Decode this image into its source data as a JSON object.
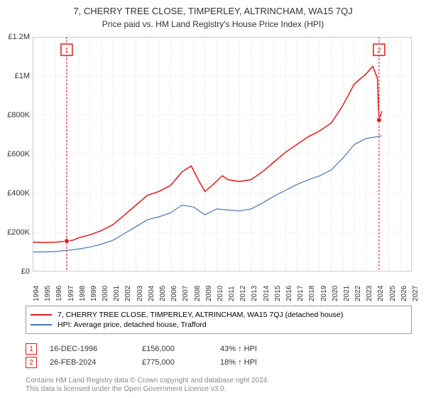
{
  "title": "7, CHERRY TREE CLOSE, TIMPERLEY, ALTRINCHAM, WA15 7QJ",
  "subtitle": "Price paid vs. HM Land Registry's House Price Index (HPI)",
  "chart": {
    "type": "line",
    "background_color": "#ffffff",
    "grid_color": "#cccccc",
    "border_color": "#999999",
    "xlim": [
      1994,
      2027
    ],
    "ylim": [
      0,
      1200000
    ],
    "y_ticks": [
      {
        "v": 0,
        "label": "£0"
      },
      {
        "v": 200000,
        "label": "£200K"
      },
      {
        "v": 400000,
        "label": "£400K"
      },
      {
        "v": 600000,
        "label": "£600K"
      },
      {
        "v": 800000,
        "label": "£800K"
      },
      {
        "v": 1000000,
        "label": "£1M"
      },
      {
        "v": 1200000,
        "label": "£1.2M"
      }
    ],
    "x_ticks": [
      1994,
      1995,
      1996,
      1997,
      1998,
      1999,
      2000,
      2001,
      2002,
      2003,
      2004,
      2005,
      2006,
      2007,
      2008,
      2009,
      2010,
      2011,
      2012,
      2013,
      2014,
      2015,
      2016,
      2017,
      2018,
      2019,
      2020,
      2021,
      2022,
      2023,
      2024,
      2025,
      2026,
      2027
    ],
    "series": [
      {
        "name": "property",
        "label": "7, CHERRY TREE CLOSE, TIMPERLEY, ALTRINCHAM, WA15 7QJ (detached house)",
        "color": "#e41a1c",
        "line_width": 1.5,
        "data": [
          [
            1994.0,
            150000
          ],
          [
            1995.0,
            148000
          ],
          [
            1996.0,
            150000
          ],
          [
            1996.96,
            156000
          ],
          [
            1997.5,
            160000
          ],
          [
            1998.0,
            172000
          ],
          [
            1999.0,
            188000
          ],
          [
            2000.0,
            210000
          ],
          [
            2001.0,
            240000
          ],
          [
            2002.0,
            290000
          ],
          [
            2003.0,
            340000
          ],
          [
            2004.0,
            390000
          ],
          [
            2005.0,
            410000
          ],
          [
            2006.0,
            440000
          ],
          [
            2007.0,
            510000
          ],
          [
            2007.8,
            540000
          ],
          [
            2008.5,
            460000
          ],
          [
            2009.0,
            410000
          ],
          [
            2009.8,
            450000
          ],
          [
            2010.5,
            490000
          ],
          [
            2011.0,
            470000
          ],
          [
            2012.0,
            460000
          ],
          [
            2013.0,
            470000
          ],
          [
            2014.0,
            510000
          ],
          [
            2015.0,
            560000
          ],
          [
            2016.0,
            610000
          ],
          [
            2017.0,
            650000
          ],
          [
            2018.0,
            690000
          ],
          [
            2019.0,
            720000
          ],
          [
            2020.0,
            760000
          ],
          [
            2021.0,
            850000
          ],
          [
            2022.0,
            960000
          ],
          [
            2023.0,
            1010000
          ],
          [
            2023.6,
            1050000
          ],
          [
            2024.0,
            990000
          ],
          [
            2024.15,
            775000
          ],
          [
            2024.4,
            820000
          ]
        ]
      },
      {
        "name": "hpi",
        "label": "HPI: Average price, detached house, Trafford",
        "color": "#4a74b8",
        "line_width": 1.2,
        "data": [
          [
            1994.0,
            100000
          ],
          [
            1995.0,
            100000
          ],
          [
            1996.0,
            102000
          ],
          [
            1997.0,
            108000
          ],
          [
            1998.0,
            115000
          ],
          [
            1999.0,
            125000
          ],
          [
            2000.0,
            140000
          ],
          [
            2001.0,
            160000
          ],
          [
            2002.0,
            195000
          ],
          [
            2003.0,
            230000
          ],
          [
            2004.0,
            265000
          ],
          [
            2005.0,
            280000
          ],
          [
            2006.0,
            300000
          ],
          [
            2007.0,
            340000
          ],
          [
            2008.0,
            330000
          ],
          [
            2009.0,
            290000
          ],
          [
            2010.0,
            320000
          ],
          [
            2011.0,
            315000
          ],
          [
            2012.0,
            310000
          ],
          [
            2013.0,
            320000
          ],
          [
            2014.0,
            350000
          ],
          [
            2015.0,
            385000
          ],
          [
            2016.0,
            415000
          ],
          [
            2017.0,
            445000
          ],
          [
            2018.0,
            470000
          ],
          [
            2019.0,
            490000
          ],
          [
            2020.0,
            520000
          ],
          [
            2021.0,
            580000
          ],
          [
            2022.0,
            650000
          ],
          [
            2023.0,
            680000
          ],
          [
            2024.0,
            690000
          ],
          [
            2024.4,
            695000
          ]
        ]
      }
    ],
    "sale_markers": [
      {
        "n": "1",
        "year": 1996.96,
        "value": 156000
      },
      {
        "n": "2",
        "year": 2024.15,
        "value": 775000
      }
    ],
    "marker_vline_color": "#e41a1c",
    "marker_vline_dash": "3,2",
    "marker_box_border": "#e41a1c",
    "marker_box_fill": "#ffffff"
  },
  "legend": {
    "border_color": "#999999",
    "items": [
      {
        "color": "#e41a1c",
        "label": "7, CHERRY TREE CLOSE, TIMPERLEY, ALTRINCHAM, WA15 7QJ (detached house)"
      },
      {
        "color": "#4a74b8",
        "label": "HPI: Average price, detached house, Trafford"
      }
    ]
  },
  "sales": [
    {
      "n": "1",
      "date": "16-DEC-1996",
      "price": "£156,000",
      "pct": "43% ↑ HPI"
    },
    {
      "n": "2",
      "date": "26-FEB-2024",
      "price": "£775,000",
      "pct": "18% ↑ HPI"
    }
  ],
  "footer": {
    "line1": "Contains HM Land Registry data © Crown copyright and database right 2024.",
    "line2": "This data is licensed under the Open Government Licence v3.0."
  }
}
